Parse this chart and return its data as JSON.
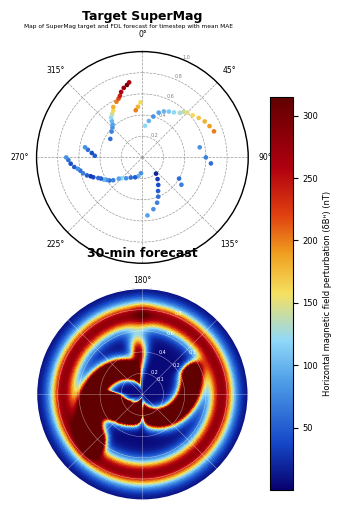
{
  "title_top": "Map of SuperMag target and FDL forecast for timestep with mean MAE",
  "title1": "Target SuperMag",
  "title2": "30-min forecast",
  "colorbar_label": "Horizontal magnetic field perturbation (δBᴴ) (nT)",
  "colorbar_ticks": [
    50,
    100,
    150,
    200,
    250,
    300
  ],
  "vmin": 0,
  "vmax": 315,
  "polar_labels": [
    "180°",
    "225°",
    "270°",
    "315°",
    "0°",
    "45°",
    "90°",
    "135°"
  ],
  "polar_label_angles": [
    180,
    225,
    270,
    315,
    0,
    45,
    90,
    135
  ],
  "scatter_theta": [
    185,
    192,
    200,
    210,
    218,
    225,
    228,
    232,
    235,
    238,
    240,
    243,
    245,
    248,
    250,
    252,
    255,
    258,
    260,
    262,
    265,
    268,
    270,
    272,
    275,
    278,
    280,
    140,
    145,
    150,
    155,
    158,
    162,
    168,
    175,
    120,
    125,
    300,
    310,
    315,
    318,
    320,
    322,
    325,
    328,
    330,
    335,
    338,
    340,
    342,
    345,
    348,
    350,
    352,
    355,
    358,
    5,
    10,
    15,
    20,
    25,
    30,
    35,
    40,
    42,
    45,
    50,
    55,
    60,
    65,
    70,
    80,
    90,
    95
  ],
  "scatter_r": [
    0.15,
    0.18,
    0.2,
    0.22,
    0.25,
    0.28,
    0.3,
    0.35,
    0.38,
    0.4,
    0.42,
    0.44,
    0.46,
    0.5,
    0.52,
    0.55,
    0.58,
    0.6,
    0.62,
    0.65,
    0.68,
    0.7,
    0.72,
    0.45,
    0.48,
    0.52,
    0.55,
    0.2,
    0.25,
    0.3,
    0.35,
    0.4,
    0.45,
    0.5,
    0.55,
    0.4,
    0.45,
    0.35,
    0.38,
    0.4,
    0.42,
    0.45,
    0.48,
    0.5,
    0.52,
    0.55,
    0.58,
    0.6,
    0.62,
    0.65,
    0.68,
    0.7,
    0.72,
    0.45,
    0.48,
    0.52,
    0.3,
    0.35,
    0.4,
    0.45,
    0.48,
    0.5,
    0.52,
    0.55,
    0.58,
    0.6,
    0.62,
    0.65,
    0.68,
    0.7,
    0.72,
    0.55,
    0.6,
    0.65
  ],
  "scatter_values": [
    80,
    100,
    50,
    60,
    80,
    120,
    90,
    70,
    60,
    80,
    100,
    50,
    60,
    40,
    30,
    50,
    70,
    60,
    80,
    50,
    40,
    60,
    80,
    50,
    40,
    60,
    80,
    20,
    30,
    40,
    50,
    60,
    70,
    80,
    90,
    60,
    70,
    60,
    70,
    80,
    90,
    100,
    120,
    140,
    160,
    180,
    200,
    220,
    240,
    260,
    280,
    300,
    260,
    200,
    180,
    160,
    120,
    100,
    80,
    90,
    100,
    110,
    120,
    130,
    140,
    150,
    160,
    170,
    180,
    190,
    200,
    80,
    70,
    60
  ],
  "background_color": "#ffffff",
  "cmap_colors": [
    [
      0.0,
      "#08006e"
    ],
    [
      0.12,
      "#1548c8"
    ],
    [
      0.28,
      "#50a0e8"
    ],
    [
      0.38,
      "#90d8f8"
    ],
    [
      0.5,
      "#f5e060"
    ],
    [
      0.6,
      "#f0a020"
    ],
    [
      0.7,
      "#e04010"
    ],
    [
      0.82,
      "#b00010"
    ],
    [
      1.0,
      "#600000"
    ]
  ]
}
